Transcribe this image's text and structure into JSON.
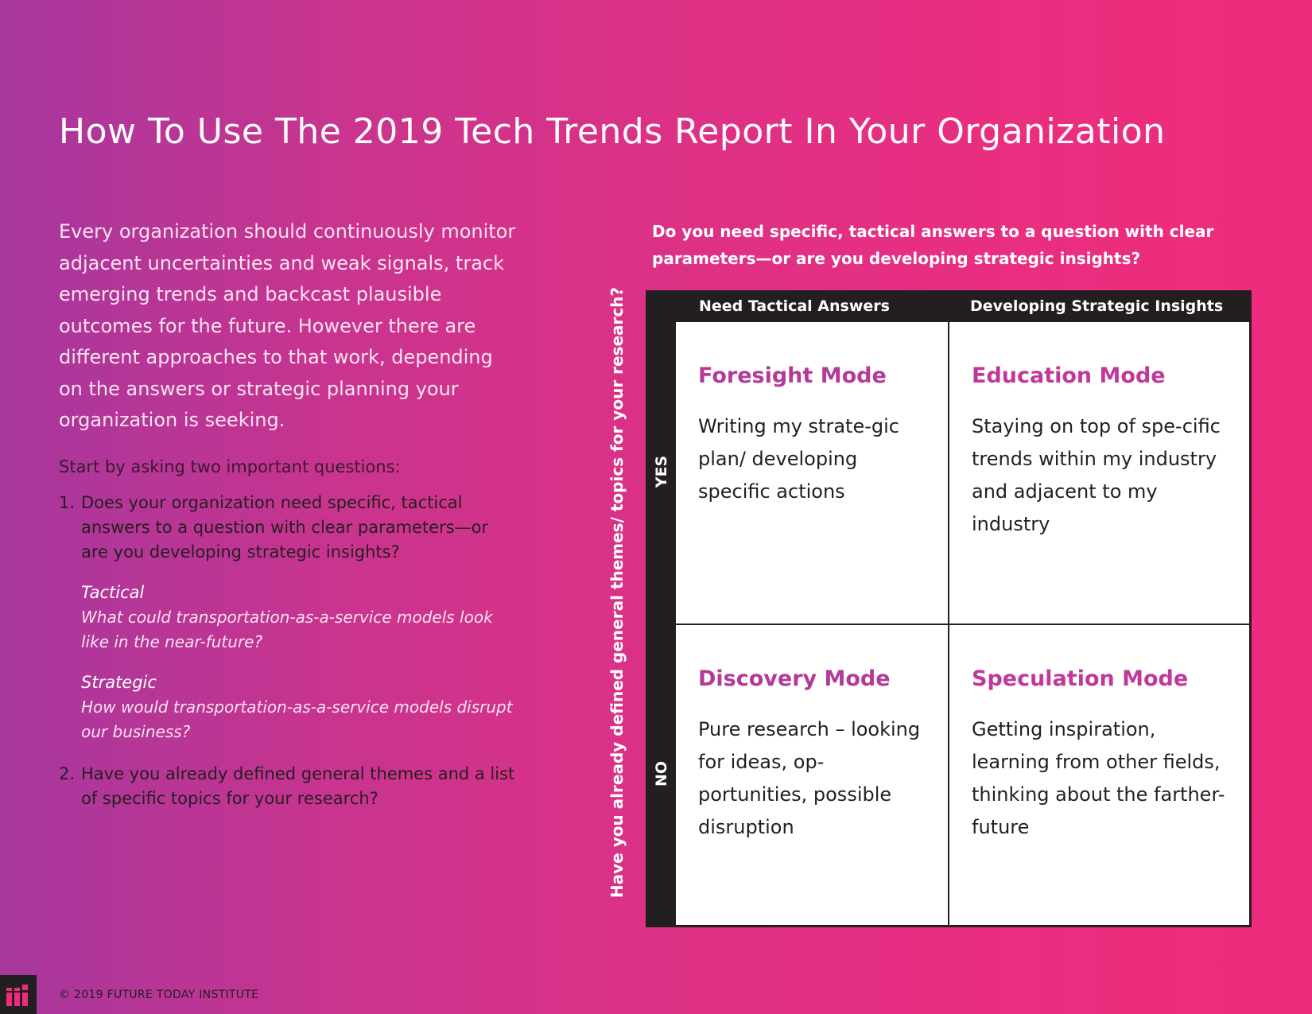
{
  "title": "How To Use The 2019 Tech Trends Report In Your Organization",
  "intro": "Every organization should continuously monitor adjacent uncertainties and weak signals, track emerging trends and backcast plausible outcomes for the future. However there are different approaches to that work, depending on the answers or strategic planning your organization is seeking.",
  "start_text": "Start by asking two important questions:",
  "questions": [
    {
      "number": "1.",
      "text": "Does your organization need specific, tactical answers to a question with clear parameters—or are you developing strategic insights?",
      "examples": [
        {
          "label": "Tactical",
          "text": "What could transportation-as-a-service models look like in the near-future?"
        },
        {
          "label": "Strategic",
          "text": "How would transportation-as-a-service models disrupt our business?"
        }
      ]
    },
    {
      "number": "2.",
      "text": "Have you already defined general themes and a list of specific topics for your research?"
    }
  ],
  "matrix": {
    "top_question": "Do you need specific, tactical answers to a question with clear parameters—or are you developing strategic insights?",
    "side_question": "Have you already defined general themes/ topics for your research?",
    "columns": [
      "Need Tactical Answers",
      "Developing Strategic Insights"
    ],
    "rows": [
      "YES",
      "NO"
    ],
    "cells": [
      {
        "title": "Foresight Mode",
        "text": "Writing my strate-gic plan/ developing specific actions"
      },
      {
        "title": "Education Mode",
        "text": "Staying on top of spe-cific trends within my industry and adjacent to my industry"
      },
      {
        "title": "Discovery Mode",
        "text": "Pure research – looking for ideas, op-portunities, possible disruption"
      },
      {
        "title": "Speculation Mode",
        "text": "Getting inspiration, learning from other fields, thinking about the farther-future"
      }
    ]
  },
  "footer": {
    "copyright": "© 2019 FUTURE TODAY INSTITUTE",
    "logo_icon": "fti-logo-icon"
  },
  "colors": {
    "gradient_start": "#a7379d",
    "gradient_end": "#ef2c7c",
    "mode_title": "#b33a99",
    "matrix_frame": "#231f20"
  }
}
